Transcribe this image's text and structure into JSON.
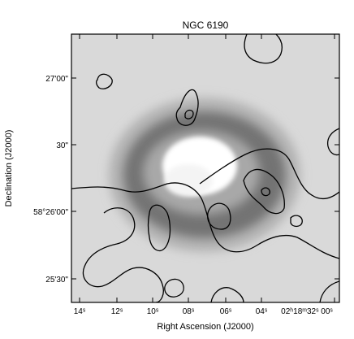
{
  "figure": {
    "title": "NGC 6190",
    "xlabel": "Right Ascension (J2000)",
    "ylabel": "Declination (J2000)",
    "x_ticks": [
      "14ˢ",
      "12ˢ",
      "10ˢ",
      "08ˢ",
      "06ˢ",
      "04ˢ",
      "02ʰ18ᵐ32ˢ 00ˢ"
    ],
    "y_ticks": [
      "27'00\"",
      "30\"",
      "58°26'00\"",
      "25'30\""
    ],
    "colors": {
      "background": "#d9d9d9",
      "ring": "#6f6f6f",
      "core": "#ffffff",
      "contour": "#000000"
    }
  }
}
